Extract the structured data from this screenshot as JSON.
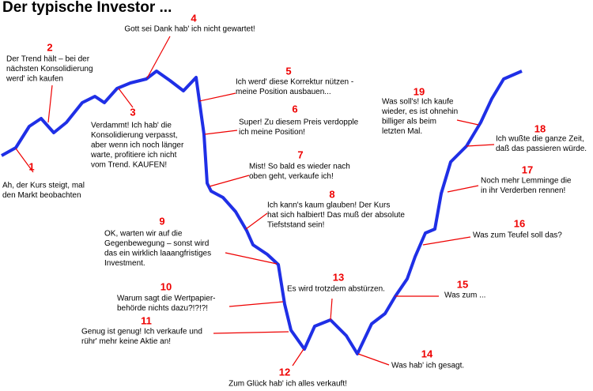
{
  "title": "Der typische Investor ...",
  "annotations": [
    {
      "number": "1",
      "lines": [
        "Ah, der Kurs steigt, mal",
        "den Markt beobachten"
      ]
    },
    {
      "number": "2",
      "lines": [
        "Der Trend hält – bei der",
        "nächsten Konsolidierung",
        "werd' ich kaufen"
      ]
    },
    {
      "number": "3",
      "lines": [
        "Verdammt! Ich hab' die",
        "Konsolidierung verpasst,",
        "aber wenn ich noch länger",
        "warte, profitiere ich nicht",
        "vom Trend. KAUFEN!"
      ]
    },
    {
      "number": "4",
      "lines": [
        "Gott sei Dank hab' ich nicht gewartet!"
      ]
    },
    {
      "number": "5",
      "lines": [
        "Ich werd' diese Korrektur nützen -",
        "meine Position ausbauen..."
      ]
    },
    {
      "number": "6",
      "lines": [
        "Super! Zu diesem Preis verdopple",
        "ich meine Position!"
      ]
    },
    {
      "number": "7",
      "lines": [
        "Mist! So bald es wieder nach",
        "oben geht, verkaufe ich!"
      ]
    },
    {
      "number": "8",
      "lines": [
        "Ich kann's kaum glauben! Der Kurs",
        "hat sich halbiert! Das muß der absolute",
        "Tiefststand sein!"
      ]
    },
    {
      "number": "9",
      "lines": [
        "OK, warten wir auf die",
        "Gegenbewegung – sonst wird",
        "das ein wirklich laaangfristiges",
        "Investment."
      ]
    },
    {
      "number": "10",
      "lines": [
        "Warum sagt die Wertpapier-",
        "behörde nichts dazu?!?!?!"
      ]
    },
    {
      "number": "11",
      "lines": [
        "Genug ist genug! Ich verkaufe und",
        "rühr' mehr keine Aktie an!"
      ]
    },
    {
      "number": "12",
      "lines": [
        "Zum Glück hab' ich alles verkauft!"
      ]
    },
    {
      "number": "13",
      "lines": [
        "Es wird trotzdem abstürzen."
      ]
    },
    {
      "number": "14",
      "lines": [
        "Was hab' ich gesagt."
      ]
    },
    {
      "number": "15",
      "lines": [
        "Was zum ..."
      ]
    },
    {
      "number": "16",
      "lines": [
        "Was zum Teufel soll das?"
      ]
    },
    {
      "number": "17",
      "lines": [
        "Noch mehr Lemminge die",
        "in ihr Verderben rennen!"
      ]
    },
    {
      "number": "18",
      "lines": [
        "Ich wußte die ganze Zeit,",
        "daß das passieren würde."
      ]
    },
    {
      "number": "19",
      "lines": [
        "Was soll's! Ich kaufe",
        "wieder, es ist ohnehin",
        "billiger als beim",
        "letzten Mal."
      ]
    }
  ]
}
